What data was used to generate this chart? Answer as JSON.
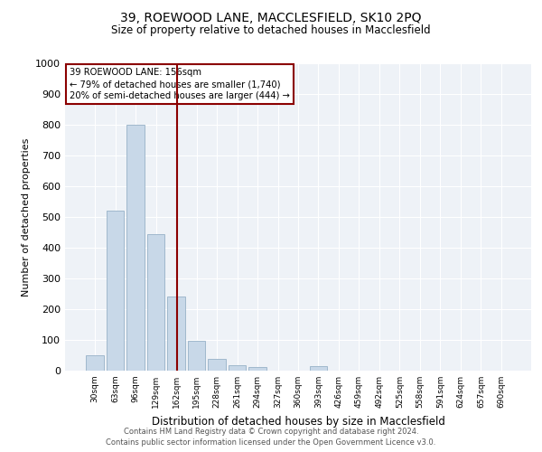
{
  "title_line1": "39, ROEWOOD LANE, MACCLESFIELD, SK10 2PQ",
  "title_line2": "Size of property relative to detached houses in Macclesfield",
  "xlabel": "Distribution of detached houses by size in Macclesfield",
  "ylabel": "Number of detached properties",
  "categories": [
    "30sqm",
    "63sqm",
    "96sqm",
    "129sqm",
    "162sqm",
    "195sqm",
    "228sqm",
    "261sqm",
    "294sqm",
    "327sqm",
    "360sqm",
    "393sqm",
    "426sqm",
    "459sqm",
    "492sqm",
    "525sqm",
    "558sqm",
    "591sqm",
    "624sqm",
    "657sqm",
    "690sqm"
  ],
  "values": [
    50,
    520,
    800,
    445,
    240,
    98,
    38,
    18,
    12,
    0,
    0,
    15,
    0,
    0,
    0,
    0,
    0,
    0,
    0,
    0,
    0
  ],
  "bar_color": "#c8d8e8",
  "bar_edge_color": "#a0b8cc",
  "ylim": [
    0,
    1000
  ],
  "yticks": [
    0,
    100,
    200,
    300,
    400,
    500,
    600,
    700,
    800,
    900,
    1000
  ],
  "vline_color": "#8b0000",
  "annotation_text": "39 ROEWOOD LANE: 156sqm\n← 79% of detached houses are smaller (1,740)\n20% of semi-detached houses are larger (444) →",
  "annotation_box_color": "#8b0000",
  "background_color": "#eef2f7",
  "footer_line1": "Contains HM Land Registry data © Crown copyright and database right 2024.",
  "footer_line2": "Contains public sector information licensed under the Open Government Licence v3.0."
}
